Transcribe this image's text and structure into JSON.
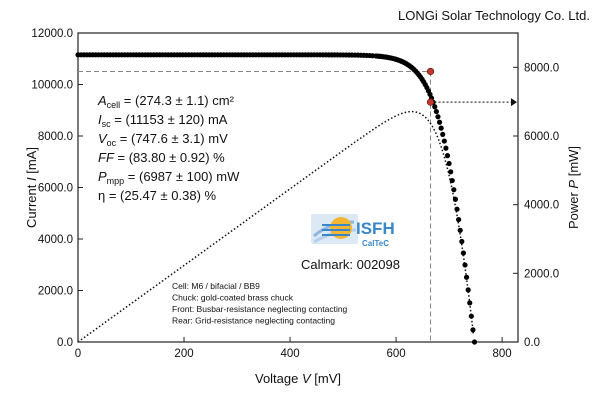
{
  "chart_data": {
    "type": "scatter",
    "header": "LONGi Solar Technology Co. Ltd.",
    "xlabel_italic": "V",
    "xlabel_pre": "Voltage ",
    "xlabel_post": " [mV]",
    "ylabel_pre": "Current ",
    "ylabel_italic": "I",
    "ylabel_post": " [mA]",
    "y2label_pre": "Power ",
    "y2label_italic": "P",
    "y2label_post": " [mW]",
    "xlim": [
      0,
      830
    ],
    "ylim": [
      0,
      12000
    ],
    "y2lim": [
      0,
      9000
    ],
    "xticks": [
      "0",
      "200",
      "400",
      "600",
      "800"
    ],
    "xtick_values": [
      0,
      200,
      400,
      600,
      800
    ],
    "yticks": [
      "0.0",
      "2000.0",
      "4000.0",
      "6000.0",
      "8000.0",
      "10000.0",
      "12000.0"
    ],
    "ytick_values": [
      0,
      2000,
      4000,
      6000,
      8000,
      10000,
      12000
    ],
    "y2ticks": [
      "0.0",
      "2000.0",
      "4000.0",
      "6000.0",
      "8000.0"
    ],
    "y2tick_values": [
      0,
      2000,
      4000,
      6000,
      8000
    ],
    "isc": 11153,
    "voc": 747.6,
    "vmp": 665,
    "imp": 10507,
    "pmp": 6987,
    "series": [
      {
        "name": "",
        "axis": "left",
        "marker": "dot"
      },
      {
        "name": "",
        "axis": "right",
        "marker": "dotted-line"
      }
    ],
    "parameters": [
      {
        "sym": "A",
        "sub": "cell",
        "text": " = (274.3 ± 1.1) cm²"
      },
      {
        "sym": "I",
        "sub": "sc",
        "text": " = (11153 ± 120) mA"
      },
      {
        "sym": "V",
        "sub": "oc",
        "text": " = (747.6 ± 3.1) mV"
      },
      {
        "sym": "FF",
        "sub": "",
        "text": " = (83.80 ± 0.92) %"
      },
      {
        "sym": "P",
        "sub": "mpp",
        "text": " = (6987 ± 100) mW"
      },
      {
        "sym": "",
        "sub": "",
        "text": "η = (25.47 ± 0.38) %"
      }
    ],
    "notes": [
      "Cell: M6 / bifacial / BB9",
      "Chuck: gold-coated brass chuck",
      "Front: Busbar-resistance neglecting contacting",
      "Rear: Grid-resistance neglecting contacting"
    ],
    "logo_text": "ISFH",
    "logo_subtext": "CalTeC",
    "calmark": "Calmark: 002098",
    "colors": {
      "points": "#000000",
      "mpp_marker": "#c0392b",
      "guide": "#888888",
      "logo": "#3a86c8"
    }
  }
}
